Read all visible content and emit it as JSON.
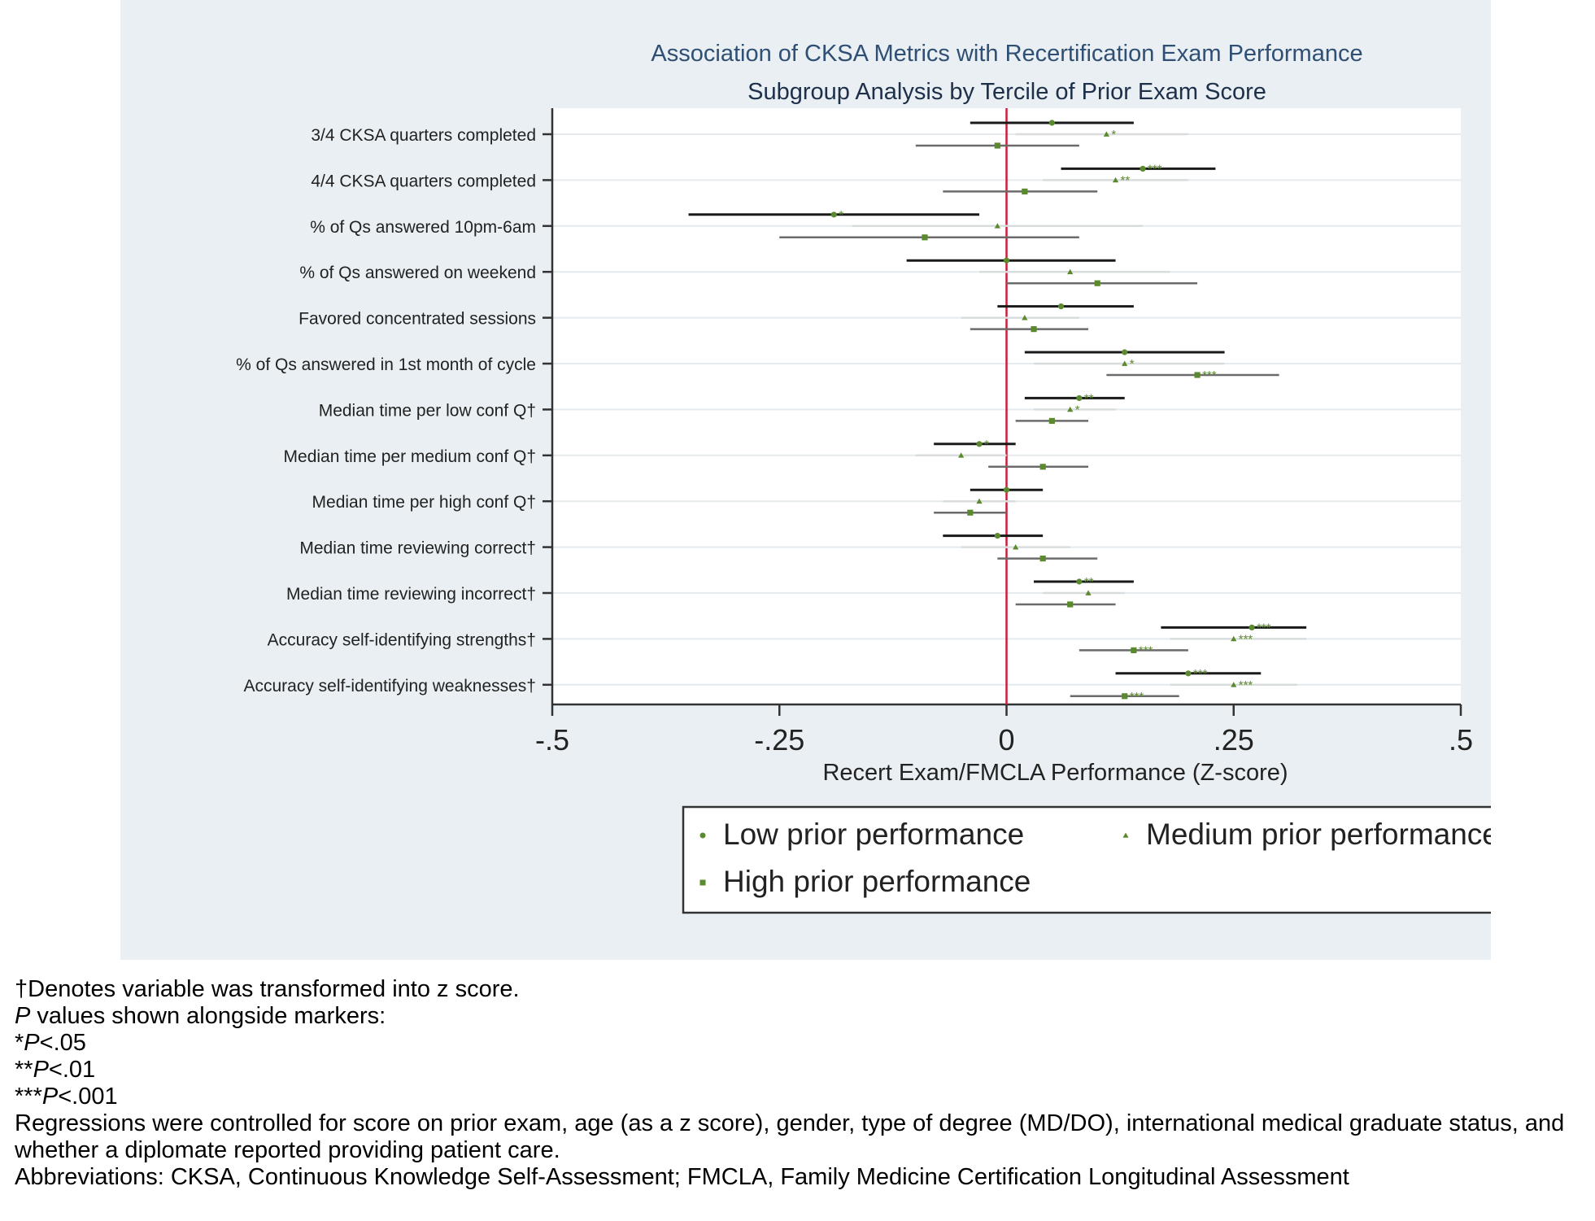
{
  "chart_data": {
    "type": "forest",
    "title": "Association of CKSA Metrics with Recertification Exam Performance",
    "subtitle": "Subgroup Analysis by Tercile of Prior Exam Score",
    "xlabel": "Recert Exam/FMCLA Performance (Z-score)",
    "xlim": [
      -0.5,
      0.5
    ],
    "xticks": [
      -0.5,
      -0.25,
      0,
      0.25,
      0.5
    ],
    "xtick_labels": [
      "-.5",
      "-.25",
      "0",
      ".25",
      ".5"
    ],
    "reference_line": 0,
    "reference_color": "#cc1e3c",
    "marker_color": "#5b8a2e",
    "grid": "horizontal",
    "legend_position": "bottom",
    "categories": [
      "3/4 CKSA quarters completed",
      "4/4 CKSA quarters completed",
      "% of Qs answered 10pm-6am",
      "% of Qs answered on weekend",
      "Favored concentrated sessions",
      "% of Qs answered in 1st month of cycle",
      "Median time per low conf Q†",
      "Median time per medium conf Q†",
      "Median time per high conf Q†",
      "Median time reviewing correct†",
      "Median time reviewing incorrect†",
      "Accuracy self-identifying strengths†",
      "Accuracy self-identifying weaknesses†"
    ],
    "series": [
      {
        "name": "Low prior performance",
        "marker": "circle",
        "line_color": "#1a1a1a",
        "estimates": [
          0.05,
          0.15,
          -0.19,
          0.0,
          0.06,
          0.13,
          0.08,
          -0.03,
          0.0,
          -0.01,
          0.08,
          0.27,
          0.2
        ],
        "ci_low": [
          -0.04,
          0.06,
          -0.35,
          -0.11,
          -0.01,
          0.02,
          0.02,
          -0.08,
          -0.04,
          -0.07,
          0.03,
          0.17,
          0.12
        ],
        "ci_high": [
          0.14,
          0.23,
          -0.03,
          0.12,
          0.14,
          0.24,
          0.13,
          0.01,
          0.04,
          0.04,
          0.14,
          0.33,
          0.28
        ],
        "significance": [
          "",
          "***",
          "*",
          "",
          "",
          "",
          "**",
          "*",
          "",
          "",
          "**",
          "***",
          "***"
        ]
      },
      {
        "name": "Medium prior performance",
        "marker": "triangle",
        "line_color": "#d9dcdd",
        "estimates": [
          0.11,
          0.12,
          -0.01,
          0.07,
          0.02,
          0.13,
          0.07,
          -0.05,
          -0.03,
          0.01,
          0.09,
          0.25,
          0.25
        ],
        "ci_low": [
          0.01,
          0.04,
          -0.17,
          -0.03,
          -0.05,
          0.03,
          0.03,
          -0.1,
          -0.07,
          -0.05,
          0.04,
          0.18,
          0.18
        ],
        "ci_high": [
          0.2,
          0.2,
          0.15,
          0.18,
          0.08,
          0.24,
          0.12,
          0.0,
          0.01,
          0.07,
          0.13,
          0.33,
          0.32
        ],
        "significance": [
          "*",
          "**",
          "",
          "",
          "",
          "*",
          "*",
          "",
          "",
          "",
          "",
          "***",
          "***"
        ]
      },
      {
        "name": "High prior performance",
        "marker": "square",
        "line_color": "#6b6b6b",
        "estimates": [
          -0.01,
          0.02,
          -0.09,
          0.1,
          0.03,
          0.21,
          0.05,
          0.04,
          -0.04,
          0.04,
          0.07,
          0.14,
          0.13
        ],
        "ci_low": [
          -0.1,
          -0.07,
          -0.25,
          0.0,
          -0.04,
          0.11,
          0.01,
          -0.02,
          -0.08,
          -0.01,
          0.01,
          0.08,
          0.07
        ],
        "ci_high": [
          0.08,
          0.1,
          0.08,
          0.21,
          0.09,
          0.3,
          0.09,
          0.09,
          0.0,
          0.1,
          0.12,
          0.2,
          0.19
        ],
        "significance": [
          "",
          "",
          "",
          "",
          "",
          "***",
          "",
          "",
          "",
          "",
          "",
          "***",
          "***"
        ]
      }
    ]
  },
  "legend": {
    "items": [
      {
        "label": "Low prior performance",
        "marker": "circle"
      },
      {
        "label": "Medium prior performance",
        "marker": "triangle"
      },
      {
        "label": "High prior performance",
        "marker": "square"
      }
    ]
  },
  "footnotes": {
    "dagger_note": "†Denotes variable was transformed into z score.",
    "p_symbol": "P",
    "p_note_rest": " values shown alongside markers:",
    "sig1_stars": "*",
    "sig1_value": "<.05",
    "sig2_stars": "**",
    "sig2_value": "<.01",
    "sig3_stars": "***",
    "sig3_value": "<.001",
    "regression_note": "Regressions were controlled for score on prior exam, age (as a z score), gender, type of degree (MD/DO), international medical graduate status, and whether a diplomate reported providing patient care.",
    "abbreviations": "Abbreviations: CKSA, Continuous Knowledge Self-Assessment; FMCLA, Family Medicine Certification Longitudinal Assessment"
  }
}
